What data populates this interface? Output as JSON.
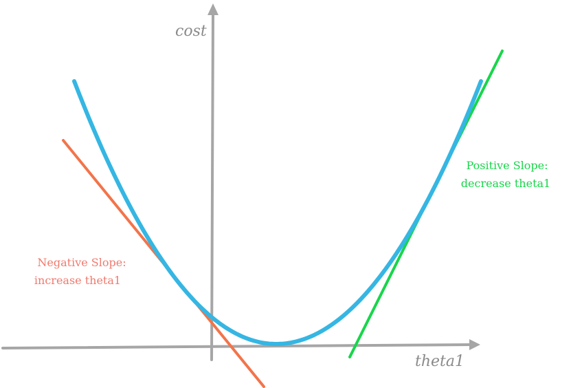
{
  "axes": {
    "y_label": "cost",
    "x_label": "theta1"
  },
  "annotations": {
    "negative": {
      "line1": "Negative Slope:",
      "line2": "increase theta1"
    },
    "positive": {
      "line1": "Positive Slope:",
      "line2": "decrease theta1"
    }
  },
  "colors": {
    "axis": "#a6a6a6",
    "curve": "#35b6e3",
    "negative_tangent": "#f2744a",
    "positive_tangent": "#17d64a",
    "negative_text": "#f07a6e",
    "positive_text": "#17d64a",
    "axis_text": "#8a8a8a"
  }
}
